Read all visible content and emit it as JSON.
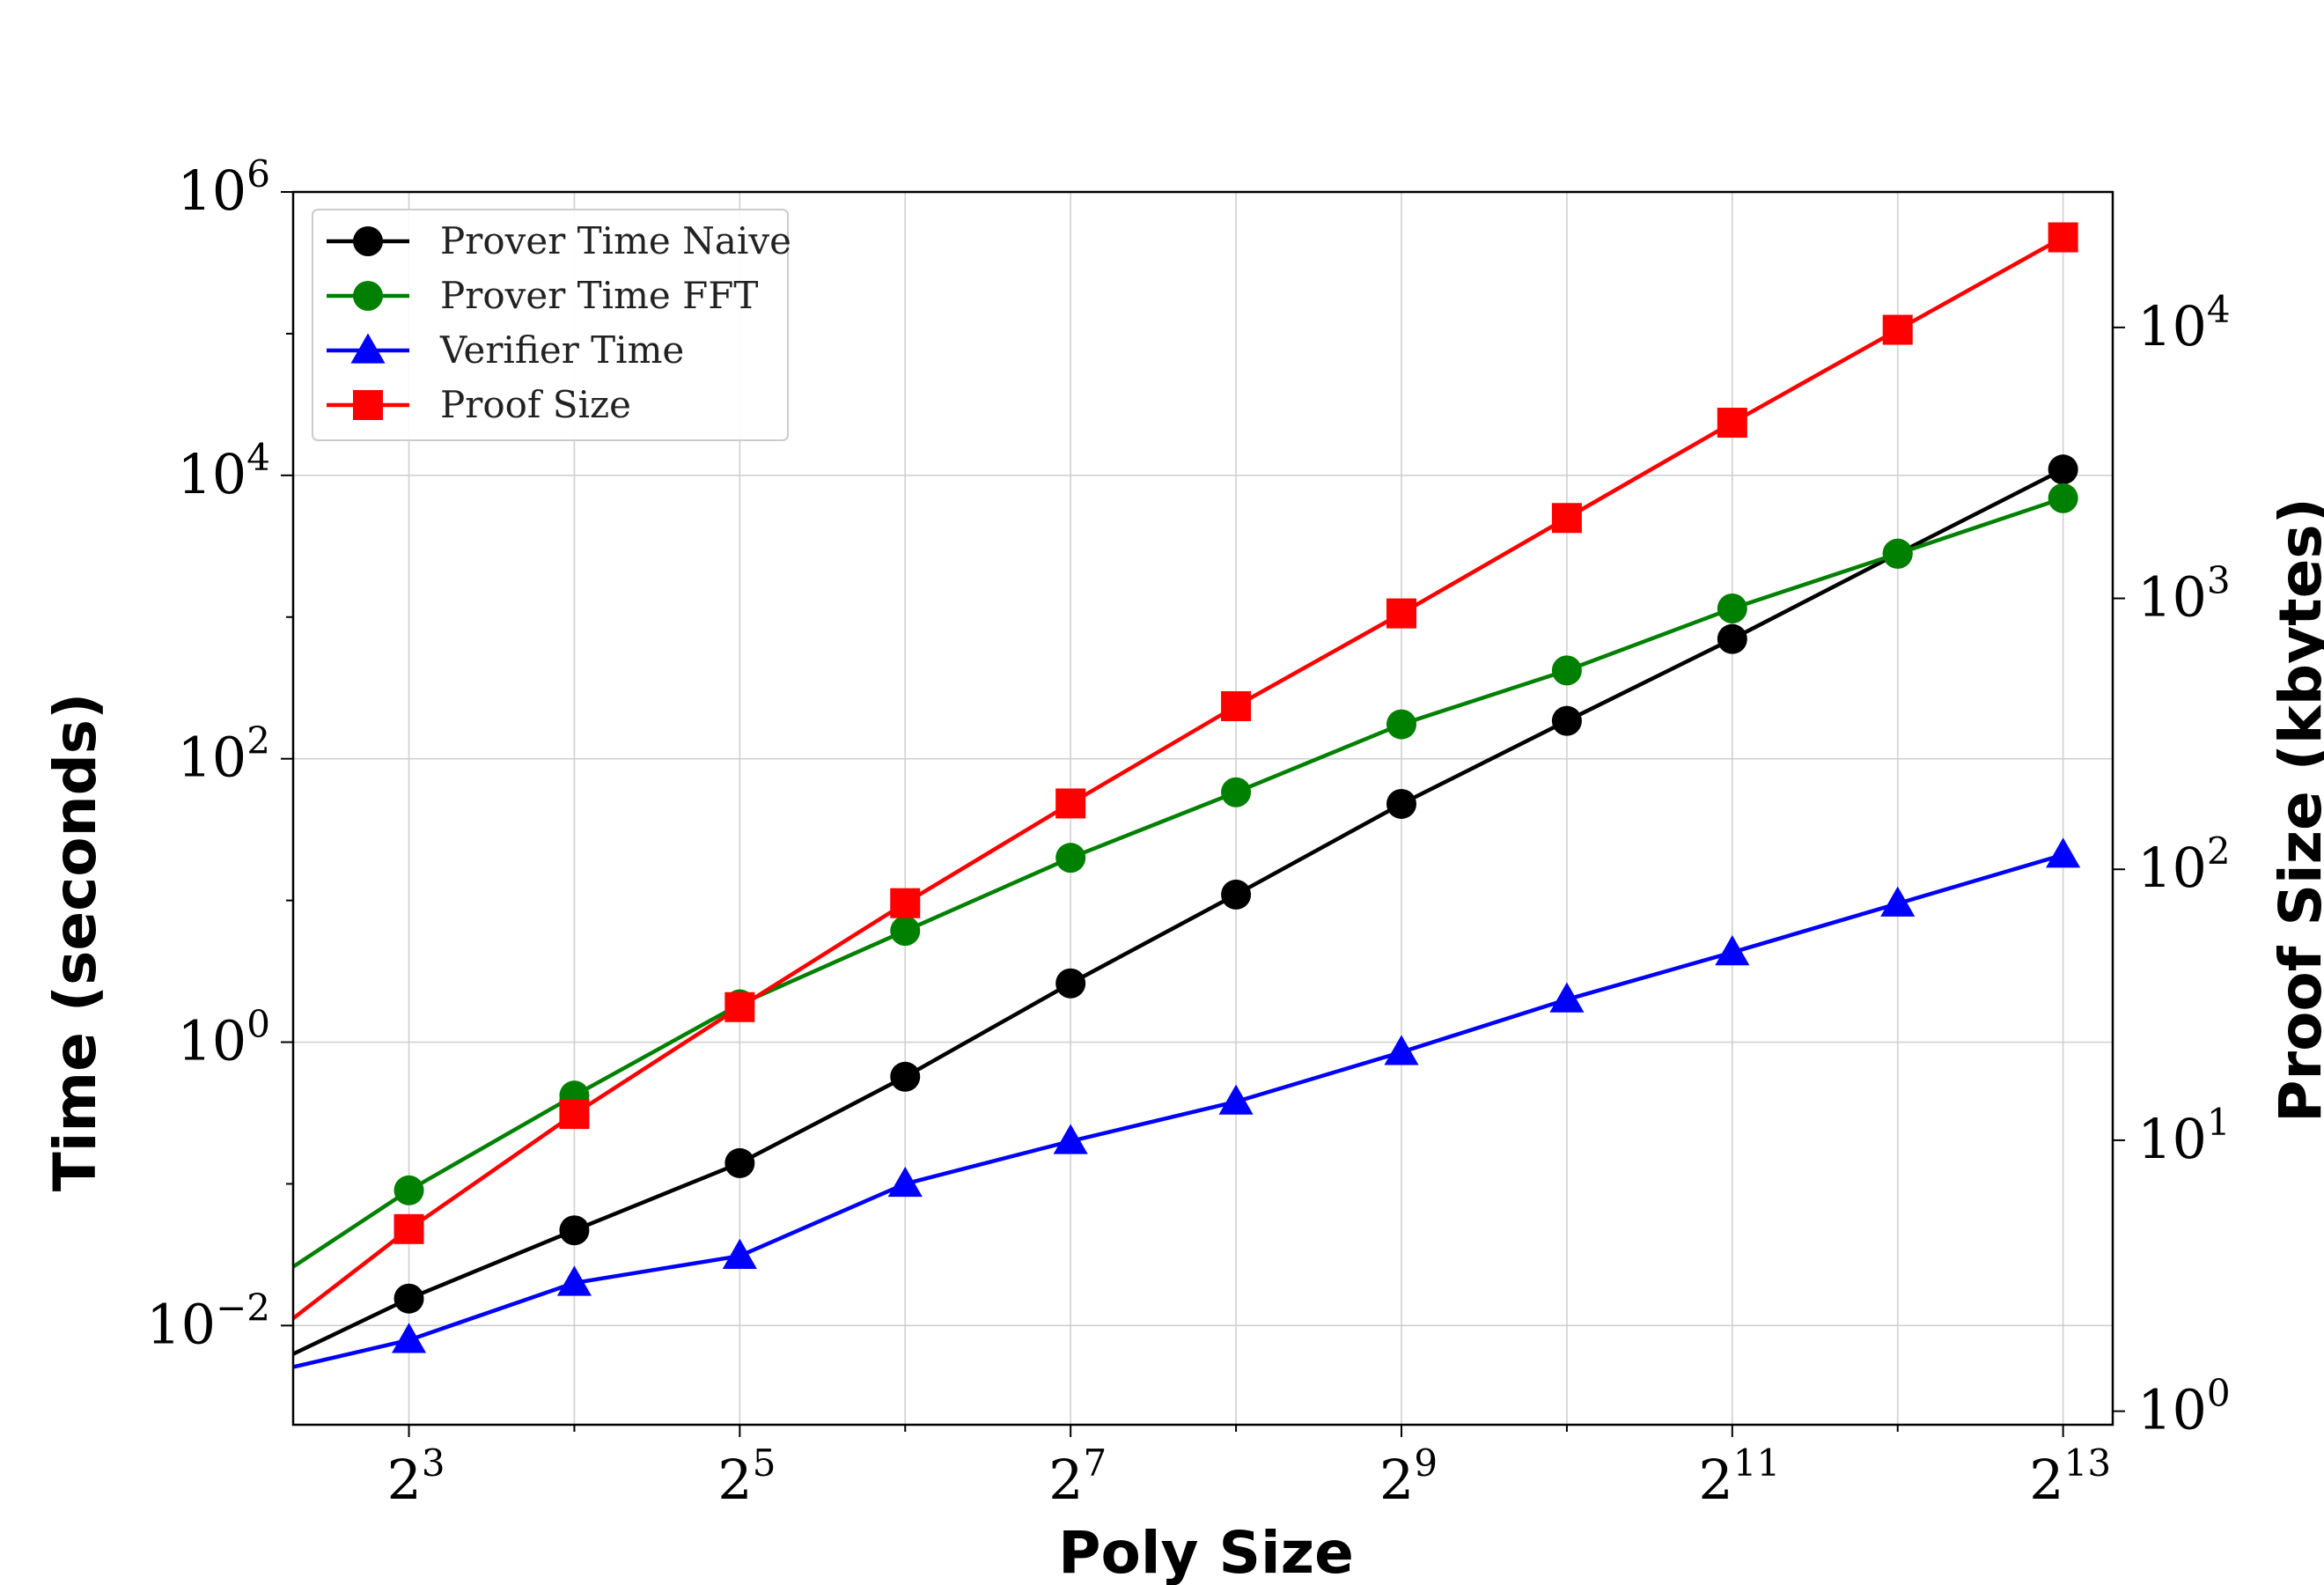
{
  "chart_data": {
    "type": "line",
    "xlabel": "Poly Size",
    "ylabel": "Time (seconds)",
    "y2label": "Proof Size (kbytes)",
    "x_scale": "log2",
    "y_scale": "log10",
    "y2_scale": "log10",
    "xlim": [
      2.3,
      13.3
    ],
    "ylim_exponent": [
      -2.7,
      6
    ],
    "y2lim_exponent": [
      -0.05,
      4.5
    ],
    "grid": true,
    "legend_position": "upper-left",
    "x_ticks": [
      {
        "base": "2",
        "exp": "3",
        "value": 3
      },
      {
        "base": "2",
        "exp": "5",
        "value": 5
      },
      {
        "base": "2",
        "exp": "7",
        "value": 7
      },
      {
        "base": "2",
        "exp": "9",
        "value": 9
      },
      {
        "base": "2",
        "exp": "11",
        "value": 11
      },
      {
        "base": "2",
        "exp": "13",
        "value": 13
      }
    ],
    "y_ticks": [
      {
        "base": "10",
        "exp": "6",
        "value": 6
      },
      {
        "base": "10",
        "exp": "4",
        "value": 4
      },
      {
        "base": "10",
        "exp": "2",
        "value": 2
      },
      {
        "base": "10",
        "exp": "0",
        "value": 0
      },
      {
        "base": "10",
        "exp": "−2",
        "value": -2
      }
    ],
    "y2_ticks": [
      {
        "base": "10",
        "exp": "4",
        "value": 4
      },
      {
        "base": "10",
        "exp": "3",
        "value": 3
      },
      {
        "base": "10",
        "exp": "2",
        "value": 2
      },
      {
        "base": "10",
        "exp": "1",
        "value": 1
      },
      {
        "base": "10",
        "exp": "0",
        "value": 0
      }
    ],
    "x_log2": [
      3,
      4,
      5,
      6,
      7,
      8,
      9,
      10,
      11,
      12,
      13
    ],
    "series": [
      {
        "name": "Prover Time Naive",
        "axis": "left",
        "color": "#000000",
        "marker": "circle",
        "values": [
          0.0155,
          0.047,
          0.14,
          0.57,
          2.6,
          11,
          48,
          185,
          700,
          2800,
          11000
        ],
        "extend_left": 0.0063
      },
      {
        "name": "Prover Time FFT",
        "axis": "left",
        "color": "#008000",
        "marker": "circle",
        "values": [
          0.09,
          0.42,
          1.85,
          6.1,
          20,
          58,
          175,
          420,
          1150,
          2800,
          6900
        ],
        "extend_left": 0.026
      },
      {
        "name": "Verifier Time",
        "axis": "left",
        "color": "#0000ff",
        "marker": "triangle",
        "values": [
          0.0079,
          0.02,
          0.031,
          0.1,
          0.2,
          0.38,
          0.85,
          2.0,
          4.3,
          9.5,
          21
        ],
        "extend_left": 0.0051
      },
      {
        "name": "Proof Size",
        "axis": "right",
        "color": "#ff0000",
        "marker": "square",
        "values": [
          4.7,
          12.5,
          31,
          75,
          175,
          400,
          880,
          1980,
          4450,
          9800,
          21500
        ],
        "extend_left": 2.2
      }
    ]
  }
}
